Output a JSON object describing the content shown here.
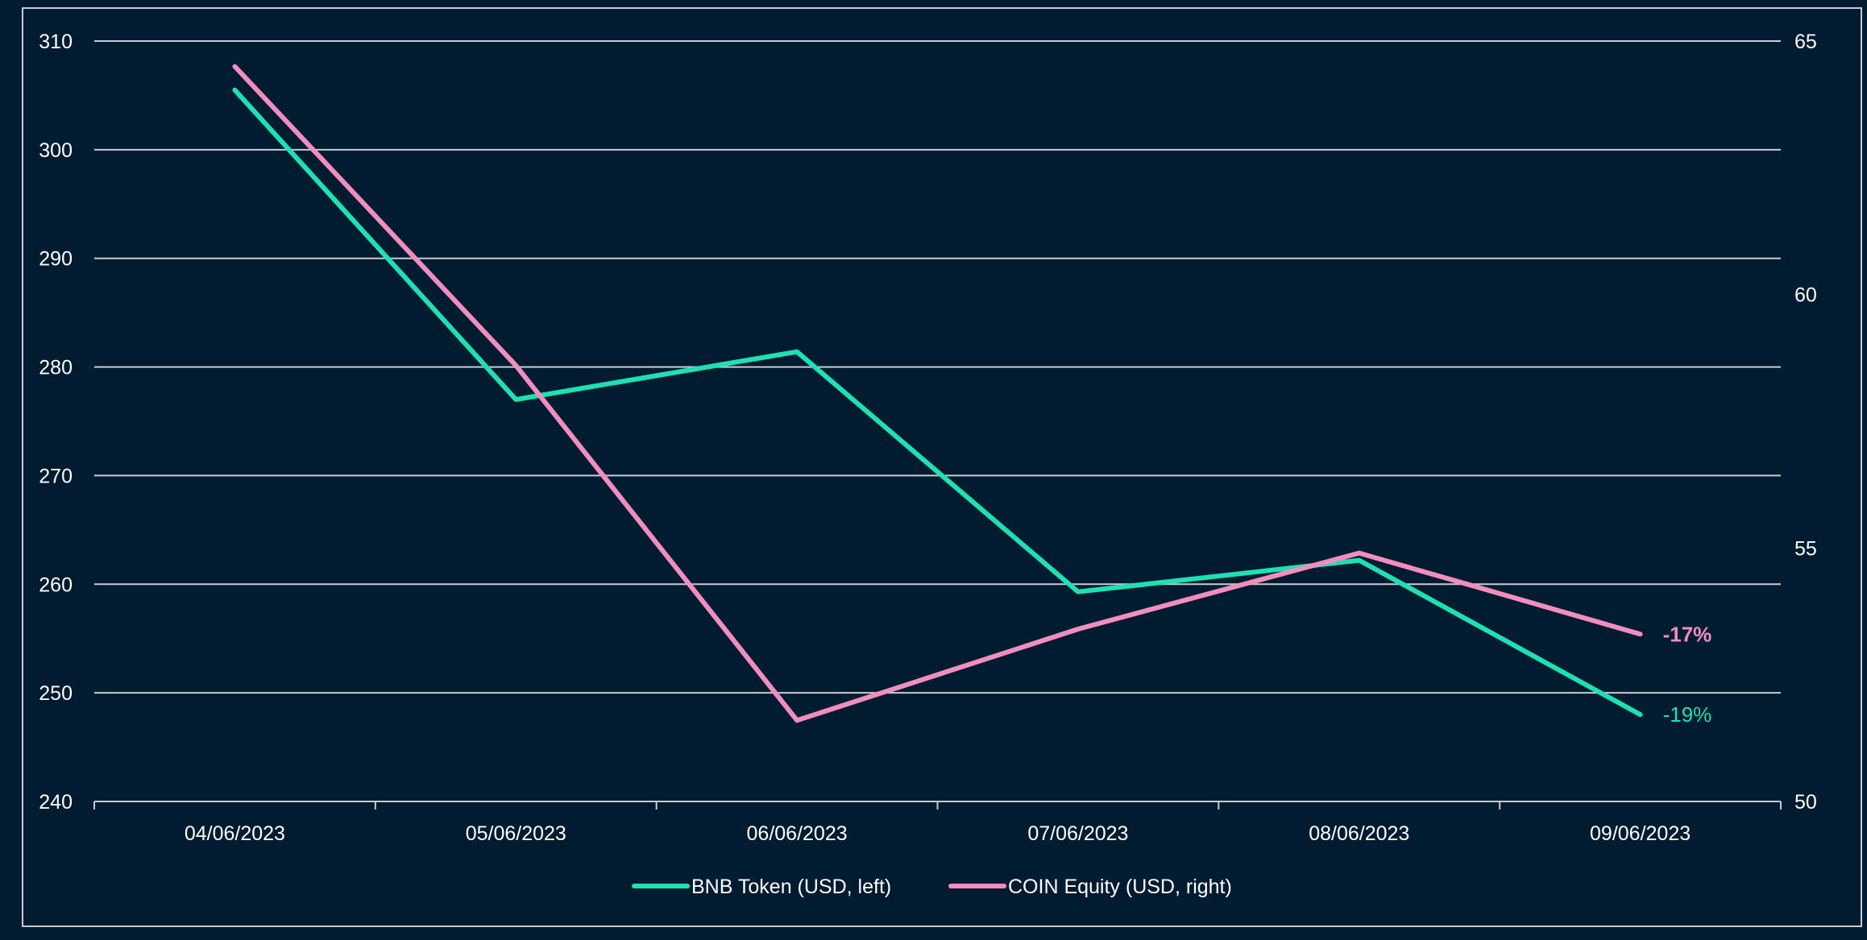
{
  "chart_data": {
    "type": "line",
    "title": "",
    "xlabel": "",
    "ylabel": "",
    "ylabel_right": "",
    "categories": [
      "04/06/2023",
      "05/06/2023",
      "06/06/2023",
      "07/06/2023",
      "08/06/2023",
      "09/06/2023"
    ],
    "ylim": [
      240,
      310
    ],
    "y_ticks": [
      240,
      250,
      260,
      270,
      280,
      290,
      300,
      310
    ],
    "ylim_right": [
      50,
      65
    ],
    "y_ticks_right": [
      50,
      55,
      60,
      65
    ],
    "grid": true,
    "legend_position": "bottom",
    "series": [
      {
        "name": "BNB Token (USD, left)",
        "axis": "left",
        "color": "#1ee0b3",
        "values": [
          305.5,
          277.0,
          281.4,
          259.3,
          262.2,
          248.0
        ],
        "end_label": "-19%"
      },
      {
        "name": "COIN Equity (USD, right)",
        "axis": "right",
        "color": "#f18ebd",
        "values": [
          64.5,
          58.6,
          51.6,
          53.4,
          54.9,
          53.3
        ],
        "end_label": "-17%"
      }
    ]
  },
  "colors": {
    "background": "#011c31",
    "grid": "#c8ccd2",
    "text": "#ffffff",
    "frame": "#c8ccd2"
  }
}
